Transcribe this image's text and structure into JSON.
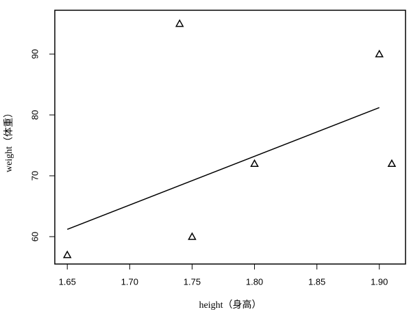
{
  "chart_data": {
    "type": "scatter",
    "xlabel": "height（身高）",
    "ylabel": "weight（体重）",
    "xlim": [
      1.64,
      1.921
    ],
    "ylim": [
      55.5,
      97.2
    ],
    "xticks": [
      1.65,
      {
        "value": 1.7,
        "label": "1.70"
      },
      1.75,
      {
        "value": 1.8,
        "label": "1.80"
      },
      1.85,
      {
        "value": 1.9,
        "label": "1.90"
      }
    ],
    "yticks": [
      60,
      70,
      80,
      90
    ],
    "series": [
      {
        "type": "scatter",
        "marker": "triangle",
        "color": "#000000",
        "x": [
          1.65,
          1.74,
          1.75,
          1.8,
          1.9,
          1.91
        ],
        "values": [
          57,
          95,
          60,
          72,
          90,
          72
        ]
      },
      {
        "type": "line",
        "color": "#000000",
        "x": [
          1.65,
          1.9
        ],
        "values": [
          61.2,
          81.2
        ]
      }
    ]
  }
}
